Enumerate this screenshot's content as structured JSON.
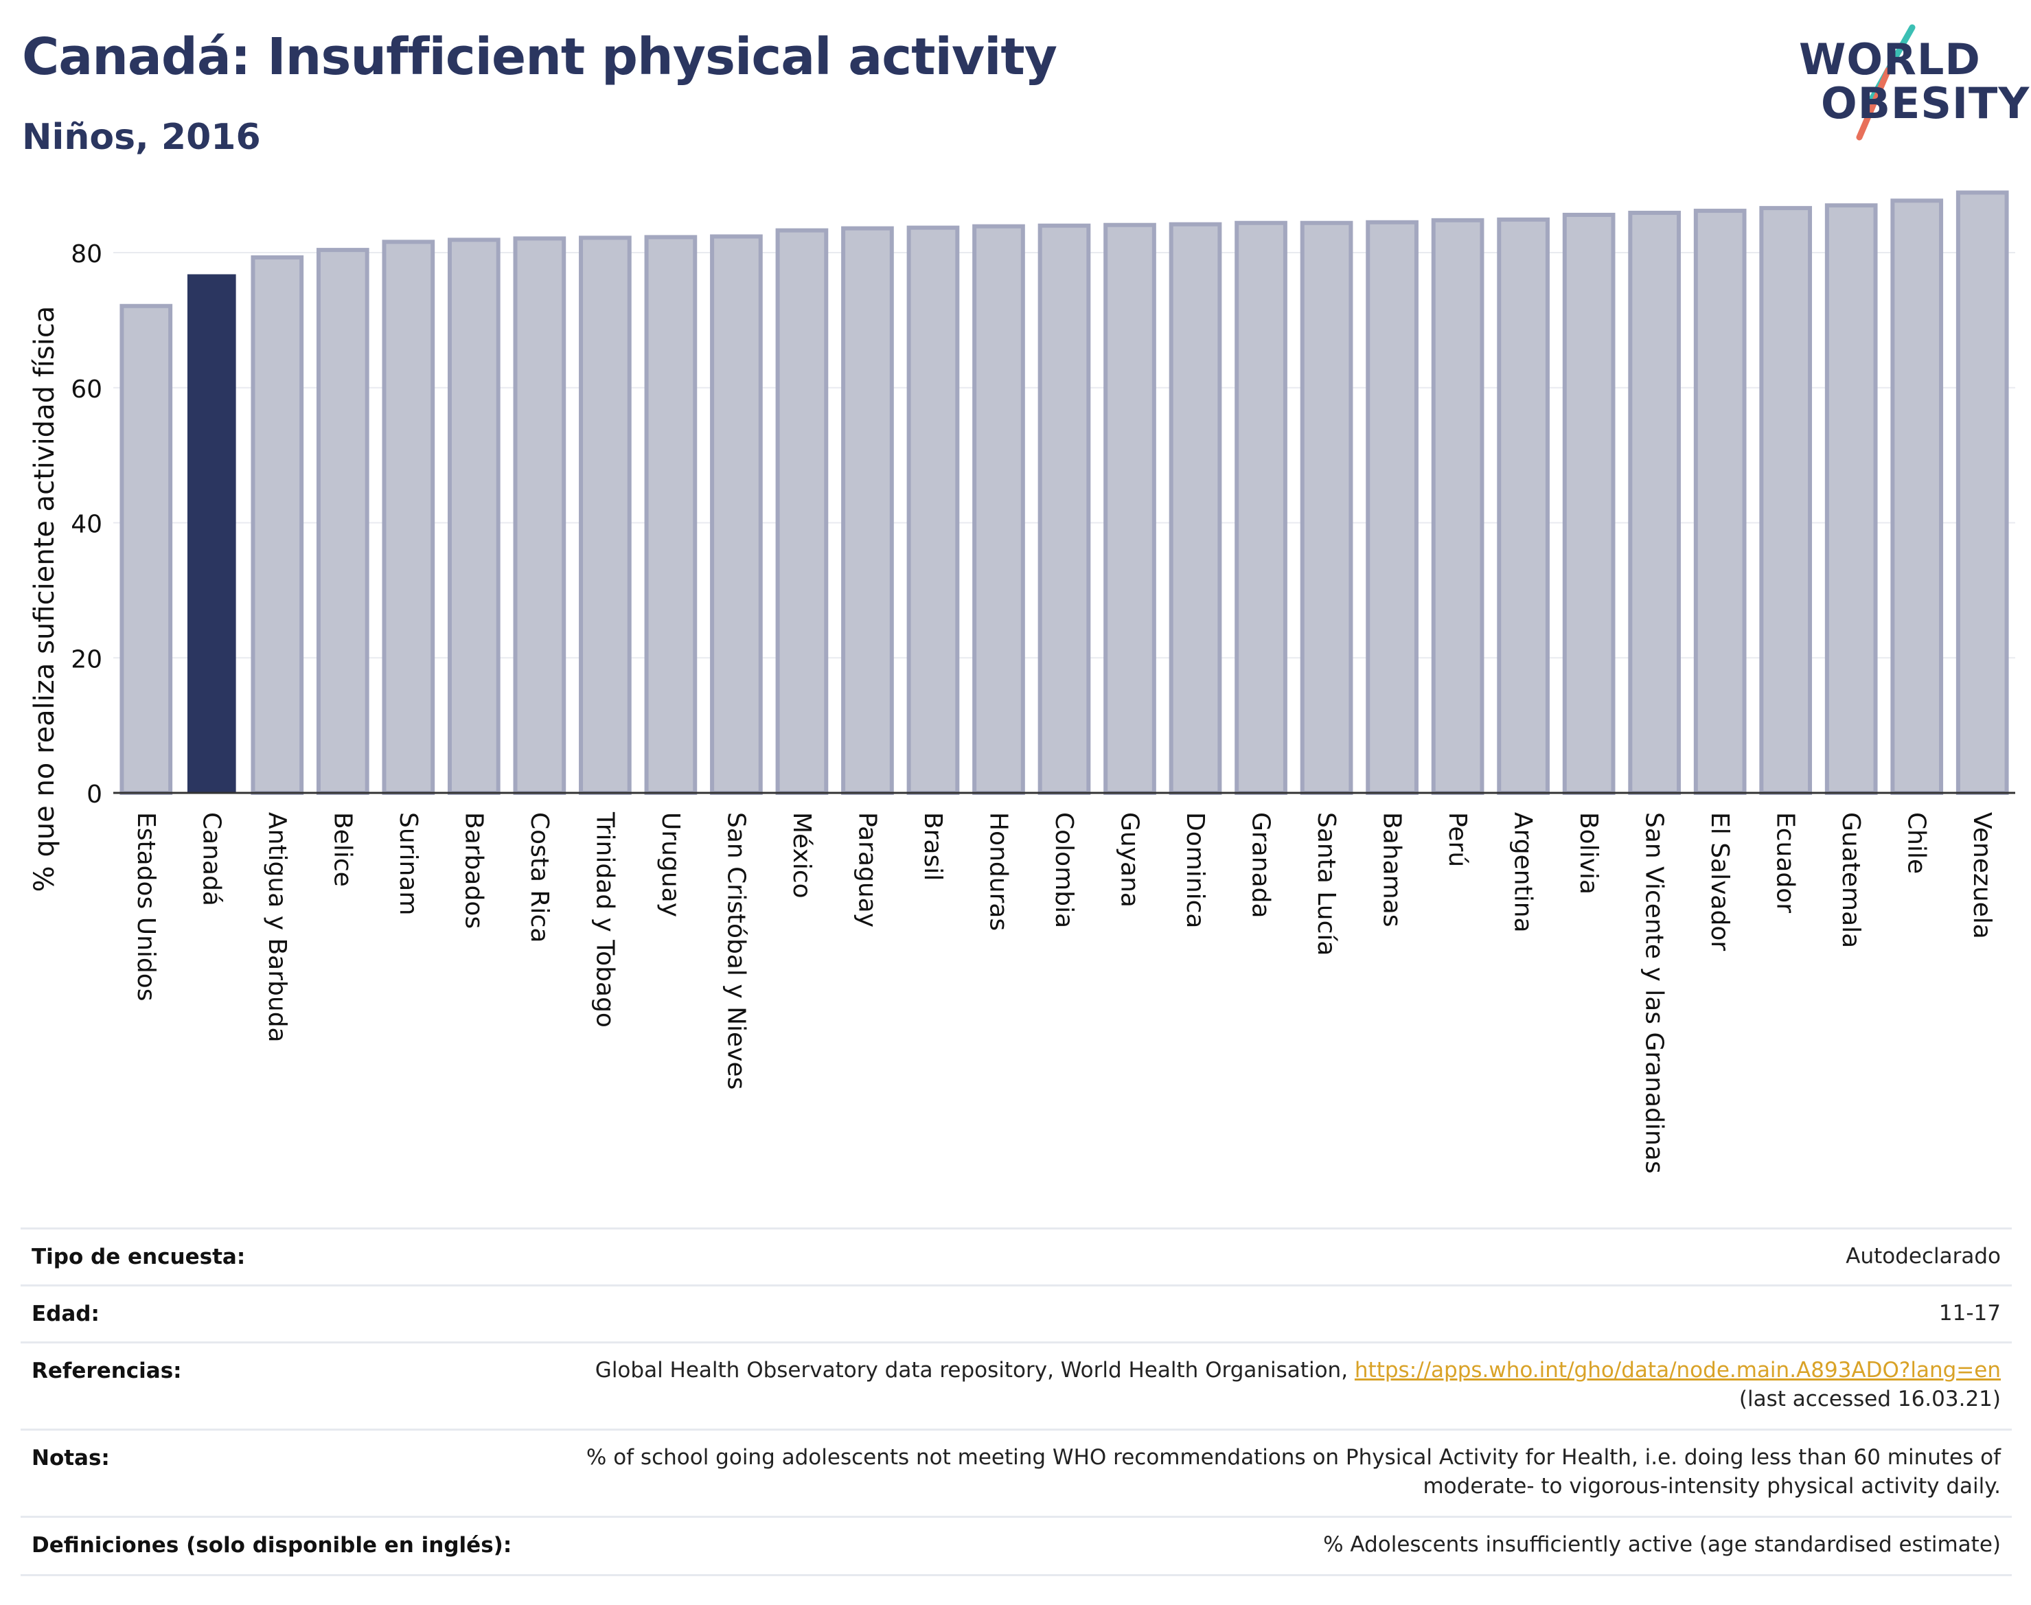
{
  "header": {
    "title": "Canadá: Insufficient physical activity",
    "subtitle": "Niños, 2016"
  },
  "logo": {
    "line1": "WORLD",
    "line2": "OBESITY",
    "colors": {
      "navy": "#2b3660",
      "teal": "#3bbfb4",
      "coral": "#e8705a"
    }
  },
  "chart_data": {
    "type": "bar",
    "ylabel": "% que no realiza suficiente actividad física",
    "xlabel": "",
    "ylim": [
      0,
      92
    ],
    "yticks": [
      0,
      20,
      40,
      60,
      80
    ],
    "grid": true,
    "highlight": "Canadá",
    "colors": {
      "highlight": "#2b3660",
      "default": "#c0c3d0",
      "default_stroke": "#a3a7bf"
    },
    "categories": [
      "Estados Unidos",
      "Canadá",
      "Antigua y Barbuda",
      "Belice",
      "Surinam",
      "Barbados",
      "Costa Rica",
      "Trinidad y Tobago",
      "Uruguay",
      "San Cristóbal y Nieves",
      "México",
      "Paraguay",
      "Brasil",
      "Honduras",
      "Colombia",
      "Guyana",
      "Dominica",
      "Granada",
      "Santa Lucía",
      "Bahamas",
      "Perú",
      "Argentina",
      "Bolivia",
      "San Vicente y las Granadinas",
      "El Salvador",
      "Ecuador",
      "Guatemala",
      "Chile",
      "Venezuela"
    ],
    "values": [
      72.1,
      76.8,
      79.3,
      80.4,
      81.6,
      81.9,
      82.1,
      82.2,
      82.3,
      82.4,
      83.3,
      83.6,
      83.7,
      83.9,
      84.0,
      84.1,
      84.2,
      84.4,
      84.4,
      84.5,
      84.8,
      84.9,
      85.6,
      85.9,
      86.2,
      86.6,
      87.0,
      87.7,
      88.9
    ]
  },
  "info": {
    "rows": [
      {
        "label": "Tipo de encuesta:",
        "value": "Autodeclarado"
      },
      {
        "label": "Edad:",
        "value": "11-17"
      },
      {
        "label": "Referencias:",
        "value_prefix": "Global Health Observatory data repository, World Health Organisation, ",
        "link": "https://apps.who.int/gho/data/node.main.A893ADO?lang=en",
        "value_suffix": "(last accessed 16.03.21)"
      },
      {
        "label": "Notas:",
        "value_line1": "% of school going adolescents not meeting WHO recommendations on Physical Activity for Health, i.e. doing less than 60 minutes of",
        "value_line2": "moderate- to vigorous-intensity physical activity daily."
      },
      {
        "label": "Definiciones (solo disponible en inglés):",
        "value": "% Adolescents insufficiently active (age standardised estimate)"
      }
    ]
  }
}
